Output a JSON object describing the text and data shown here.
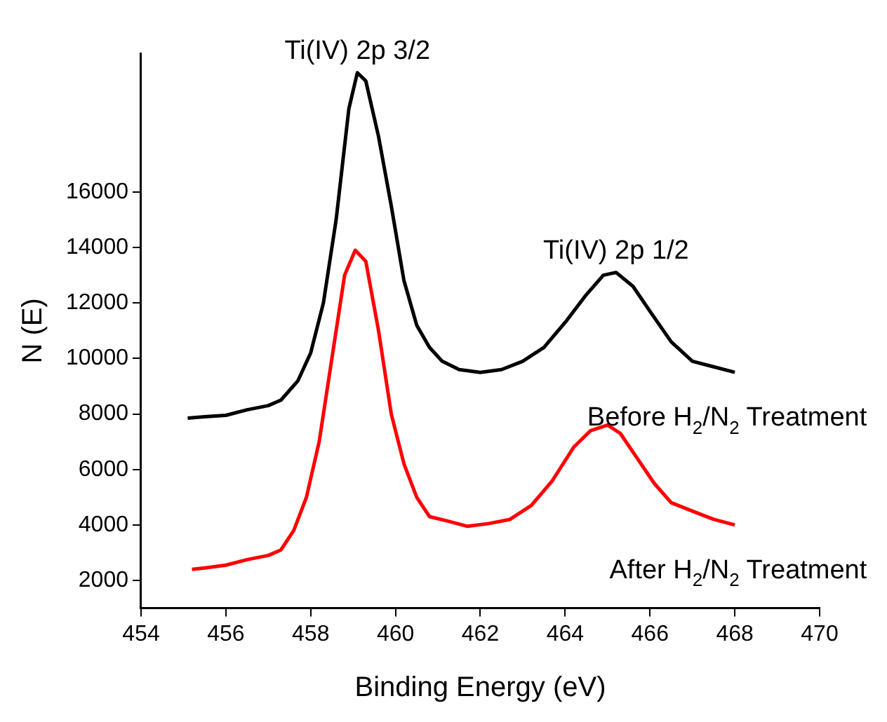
{
  "chart_data": {
    "type": "line",
    "xlabel": "Binding Energy (eV)",
    "ylabel": "N (E)",
    "xlim": [
      454,
      470
    ],
    "xticks": [
      454,
      456,
      458,
      460,
      462,
      464,
      466,
      468,
      470
    ],
    "ylim": [
      1000,
      21000
    ],
    "yticks": [
      2000,
      4000,
      6000,
      8000,
      10000,
      12000,
      14000,
      16000
    ],
    "grid": false,
    "legend": false,
    "marker": "none",
    "line_style": "solid",
    "annotations": [
      {
        "text": "Ti(IV) 2p 3/2",
        "x": 459.1,
        "y": 20300
      },
      {
        "text": "Ti(IV) 2p 1/2",
        "x": 465.2,
        "y": 13100
      }
    ],
    "series": [
      {
        "name": "Before H$_{2}$/N$_{2}$ Treatment",
        "color": "#000000",
        "x": [
          455.1,
          455.5,
          456,
          456.5,
          457,
          457.3,
          457.7,
          458,
          458.3,
          458.6,
          458.9,
          459.1,
          459.3,
          459.6,
          459.9,
          460.2,
          460.5,
          460.8,
          461.1,
          461.5,
          462,
          462.5,
          463,
          463.5,
          464,
          464.5,
          464.9,
          465.2,
          465.6,
          466,
          466.5,
          467,
          467.5,
          468
        ],
        "values": [
          7850,
          7900,
          7950,
          8150,
          8300,
          8500,
          9200,
          10200,
          12000,
          15000,
          19000,
          20300,
          20000,
          18000,
          15500,
          12800,
          11200,
          10400,
          9900,
          9600,
          9500,
          9600,
          9900,
          10400,
          11300,
          12300,
          13000,
          13100,
          12600,
          11700,
          10600,
          9900,
          9700,
          9500
        ]
      },
      {
        "name": "After H$_{2}$/N$_{2}$ Treatment",
        "color": "#ff0000",
        "x": [
          455.2,
          455.5,
          456,
          456.5,
          457,
          457.3,
          457.6,
          457.9,
          458.2,
          458.5,
          458.8,
          459.05,
          459.3,
          459.6,
          459.9,
          460.2,
          460.5,
          460.8,
          461.2,
          461.7,
          462.2,
          462.7,
          463.2,
          463.7,
          464.2,
          464.6,
          465,
          465.3,
          465.7,
          466.1,
          466.5,
          467,
          467.5,
          468
        ],
        "values": [
          2400,
          2450,
          2550,
          2750,
          2900,
          3100,
          3800,
          5000,
          7000,
          10000,
          13000,
          13900,
          13500,
          11000,
          8000,
          6200,
          5000,
          4300,
          4150,
          3950,
          4050,
          4200,
          4700,
          5600,
          6800,
          7400,
          7600,
          7300,
          6400,
          5500,
          4800,
          4500,
          4200,
          4000
        ]
      }
    ]
  }
}
